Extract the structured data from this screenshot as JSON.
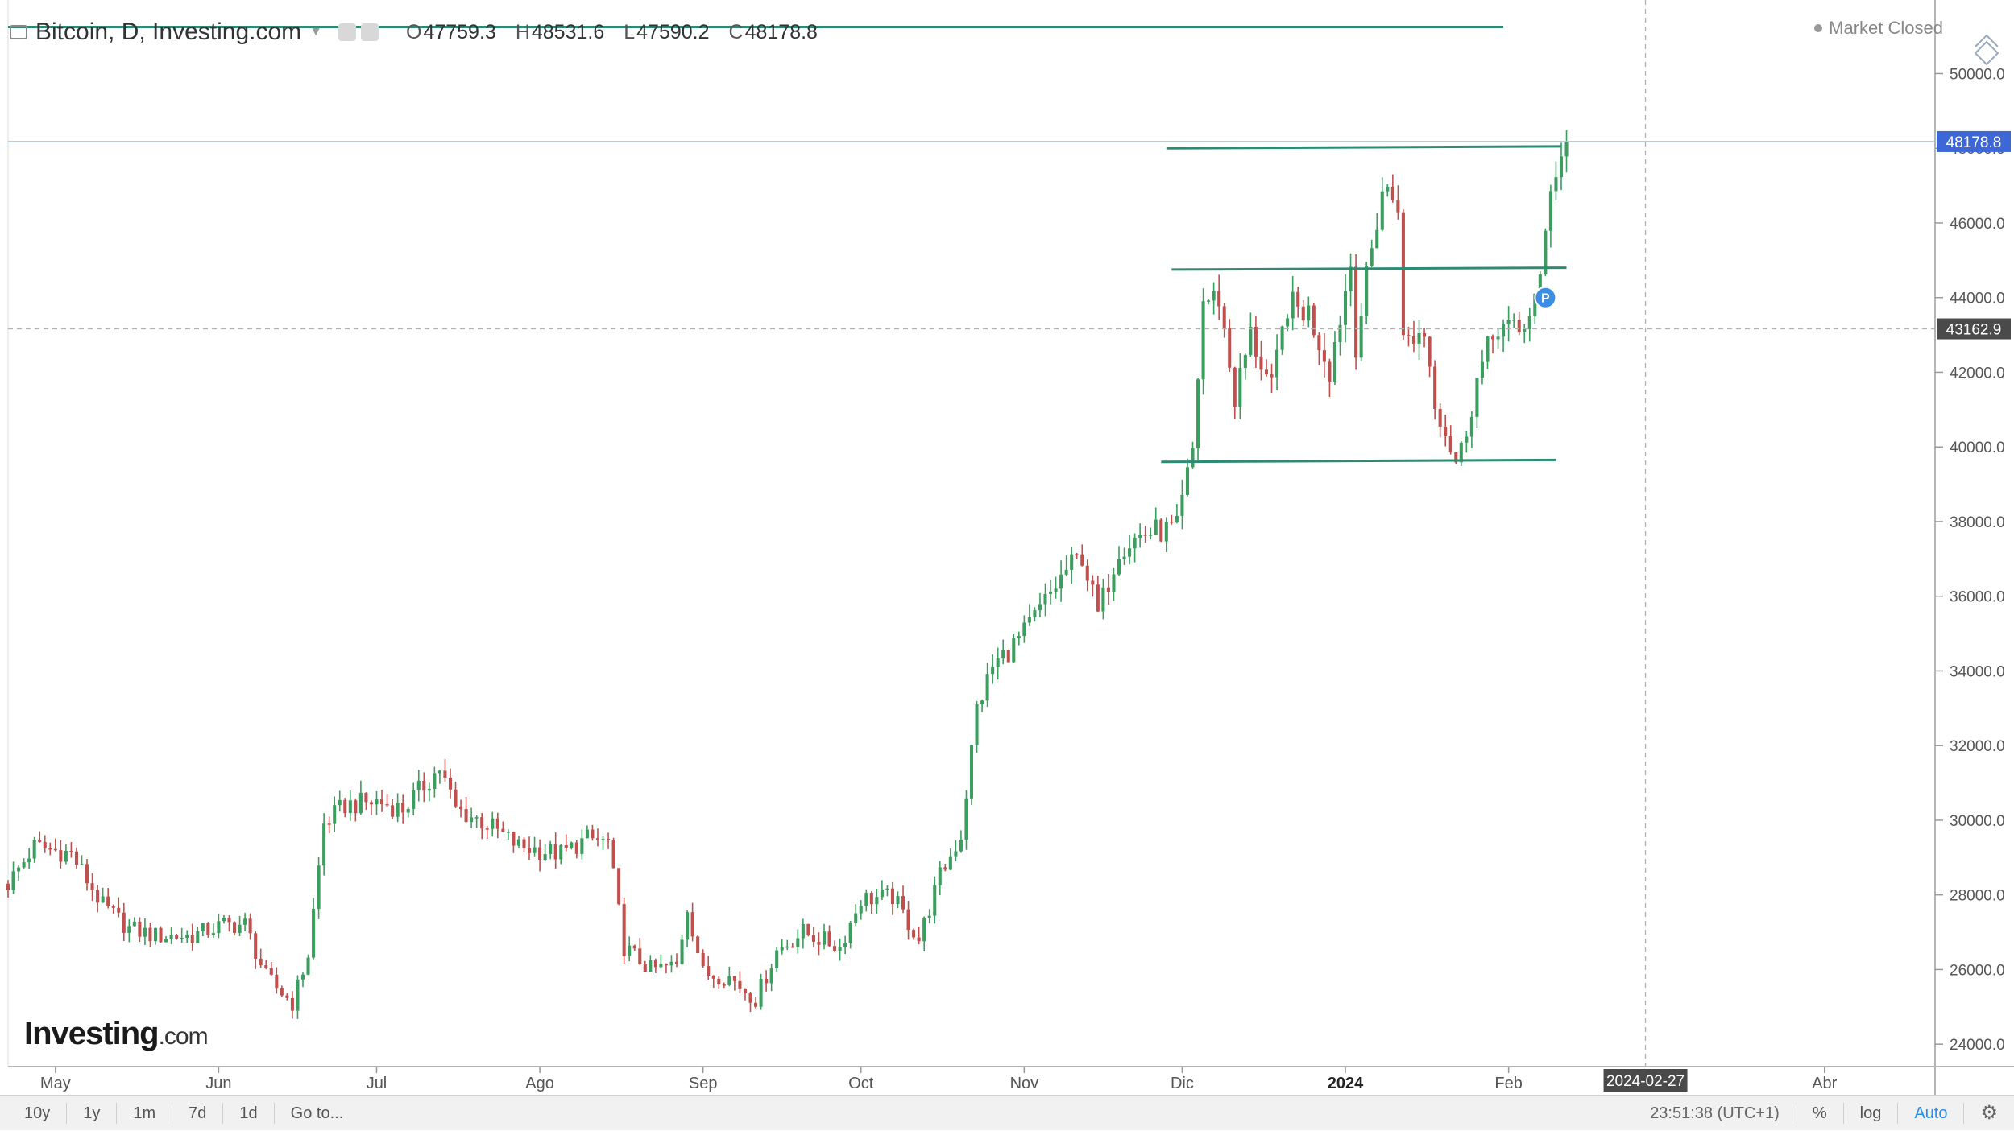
{
  "header": {
    "title": "Bitcoin, D, Investing.com",
    "open_label": "O",
    "open": "47759.3",
    "high_label": "H",
    "high": "48531.6",
    "low_label": "L",
    "low": "47590.2",
    "close_label": "C",
    "close": "48178.8"
  },
  "market_status": "Market Closed",
  "watermark": {
    "brand": "Investing",
    "suffix": ".com"
  },
  "price_labels": {
    "last": "48178.8",
    "crosshair": "43162.9"
  },
  "date_label": "2024-02-27",
  "marker_label": "P",
  "footer": {
    "ranges": [
      "10y",
      "1y",
      "1m",
      "7d",
      "1d"
    ],
    "goto": "Go to...",
    "time": "23:51:38 (UTC+1)",
    "percent": "%",
    "log": "log",
    "auto": "Auto"
  },
  "colors": {
    "up": "#3b9d5e",
    "down": "#c0504d",
    "trendline": "#2e8b72",
    "last_price_bg": "#3d67d6",
    "crosshair_bg": "#4a4a4a"
  },
  "chart_data": {
    "type": "candlestick",
    "title": "Bitcoin, D, Investing.com",
    "ylim": [
      23400,
      51800
    ],
    "y_ticks": [
      24000,
      26000,
      28000,
      30000,
      32000,
      34000,
      36000,
      38000,
      40000,
      42000,
      44000,
      46000,
      48000,
      50000
    ],
    "x_tick_labels": [
      "May",
      "Jun",
      "Jul",
      "Ago",
      "Sep",
      "Oct",
      "Nov",
      "Dic",
      "2024",
      "Feb",
      "Abr"
    ],
    "x_ticks_dates": [
      "2023-05-01",
      "2023-06-01",
      "2023-07-01",
      "2023-08-01",
      "2023-09-01",
      "2023-10-01",
      "2023-11-01",
      "2023-12-01",
      "2024-01-01",
      "2024-02-01",
      "2024-04-01"
    ],
    "last_close": 48178.8,
    "crosshair_price": 43162.9,
    "crosshair_date": "2024-02-27",
    "grid": false,
    "trendlines": [
      {
        "from": [
          "2023-04-22",
          51250
        ],
        "to": [
          "2024-01-31",
          51250
        ]
      },
      {
        "from": [
          "2023-11-28",
          48000
        ],
        "to": [
          "2024-02-11",
          48050
        ]
      },
      {
        "from": [
          "2023-11-29",
          44750
        ],
        "to": [
          "2024-02-12",
          44800
        ]
      },
      {
        "from": [
          "2023-11-27",
          39600
        ],
        "to": [
          "2024-02-10",
          39650
        ]
      }
    ],
    "marker": {
      "date": "2024-02-08",
      "price": 44000,
      "label": "P"
    },
    "anchors": [
      [
        "2023-04-22",
        28300
      ],
      [
        "2023-04-27",
        29300
      ],
      [
        "2023-05-04",
        29100
      ],
      [
        "2023-05-10",
        27700
      ],
      [
        "2023-05-15",
        27100
      ],
      [
        "2023-05-20",
        26900
      ],
      [
        "2023-05-27",
        26900
      ],
      [
        "2023-06-02",
        27200
      ],
      [
        "2023-06-06",
        27200
      ],
      [
        "2023-06-10",
        25800
      ],
      [
        "2023-06-15",
        25100
      ],
      [
        "2023-06-18",
        26400
      ],
      [
        "2023-06-21",
        29900
      ],
      [
        "2023-06-25",
        30400
      ],
      [
        "2023-07-01",
        30500
      ],
      [
        "2023-07-06",
        30300
      ],
      [
        "2023-07-13",
        31400
      ],
      [
        "2023-07-16",
        30300
      ],
      [
        "2023-07-22",
        29900
      ],
      [
        "2023-07-28",
        29300
      ],
      [
        "2023-08-05",
        29100
      ],
      [
        "2023-08-10",
        29500
      ],
      [
        "2023-08-14",
        29400
      ],
      [
        "2023-08-17",
        26600
      ],
      [
        "2023-08-22",
        26000
      ],
      [
        "2023-08-27",
        26100
      ],
      [
        "2023-08-29",
        27700
      ],
      [
        "2023-09-01",
        25900
      ],
      [
        "2023-09-06",
        25800
      ],
      [
        "2023-09-11",
        25200
      ],
      [
        "2023-09-15",
        26500
      ],
      [
        "2023-09-20",
        27000
      ],
      [
        "2023-09-27",
        26600
      ],
      [
        "2023-10-01",
        27900
      ],
      [
        "2023-10-07",
        27950
      ],
      [
        "2023-10-12",
        26800
      ],
      [
        "2023-10-16",
        28500
      ],
      [
        "2023-10-20",
        29600
      ],
      [
        "2023-10-23",
        33000
      ],
      [
        "2023-10-26",
        34100
      ],
      [
        "2023-11-01",
        35000
      ],
      [
        "2023-11-09",
        36700
      ],
      [
        "2023-11-12",
        37100
      ],
      [
        "2023-11-15",
        35500
      ],
      [
        "2023-11-19",
        37300
      ],
      [
        "2023-11-24",
        37700
      ],
      [
        "2023-11-30",
        37800
      ],
      [
        "2023-12-03",
        39900
      ],
      [
        "2023-12-05",
        43900
      ],
      [
        "2023-12-08",
        44000
      ],
      [
        "2023-12-11",
        41300
      ],
      [
        "2023-12-14",
        43000
      ],
      [
        "2023-12-18",
        41500
      ],
      [
        "2023-12-21",
        43800
      ],
      [
        "2023-12-25",
        43600
      ],
      [
        "2023-12-29",
        42100
      ],
      [
        "2024-01-02",
        44900
      ],
      [
        "2024-01-03",
        42800
      ],
      [
        "2024-01-08",
        46900
      ],
      [
        "2024-01-11",
        46600
      ],
      [
        "2024-01-12",
        42800
      ],
      [
        "2024-01-16",
        43100
      ],
      [
        "2024-01-18",
        41300
      ],
      [
        "2024-01-22",
        39600
      ],
      [
        "2024-01-23",
        39900
      ],
      [
        "2024-01-26",
        41800
      ],
      [
        "2024-01-30",
        43300
      ],
      [
        "2024-02-03",
        43000
      ],
      [
        "2024-02-07",
        44300
      ],
      [
        "2024-02-09",
        47100
      ],
      [
        "2024-02-12",
        48178.8
      ]
    ]
  }
}
